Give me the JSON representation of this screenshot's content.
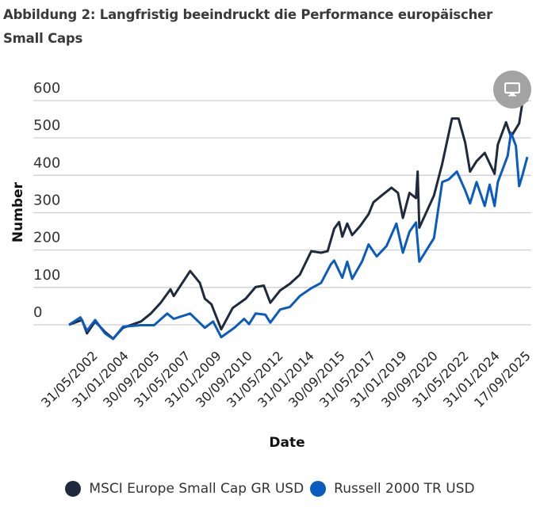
{
  "title": "Abbildung 2: Langfristig beeindruckt die Performance europäischer Small Caps",
  "menu_icon": "monitor-icon",
  "chart_data": {
    "type": "line",
    "title": "",
    "xlabel": "Date",
    "ylabel": "Number",
    "ylim": [
      -40,
      620
    ],
    "yticks": [
      0,
      100,
      200,
      300,
      400,
      500,
      600
    ],
    "xlim": [
      "2002-05",
      "2025-09"
    ],
    "xtick_labels": [
      "31/05/2002",
      "31/01/2004",
      "30/09/2005",
      "31/05/2007",
      "31/01/2009",
      "30/09/2010",
      "31/05/2012",
      "31/01/2014",
      "30/09/2015",
      "31/05/2017",
      "31/01/2019",
      "30/09/2020",
      "31/05/2022",
      "31/01/2024",
      "17/09/2025"
    ],
    "grid": true,
    "legend_position": "bottom",
    "series": [
      {
        "name": "MSCI Europe Small Cap GR USD",
        "color": "#1f2a3c",
        "x": [
          "2002-05",
          "2003-01",
          "2003-04",
          "2003-09",
          "2004-03",
          "2004-08",
          "2005-02",
          "2006-01",
          "2006-07",
          "2007-01",
          "2007-07",
          "2007-09",
          "2008-07",
          "2009-01",
          "2009-04",
          "2009-08",
          "2010-02",
          "2010-09",
          "2011-05",
          "2011-11",
          "2012-04",
          "2012-08",
          "2013-02",
          "2013-08",
          "2014-02",
          "2014-09",
          "2015-03",
          "2015-07",
          "2015-11",
          "2016-02",
          "2016-04",
          "2016-07",
          "2016-10",
          "2017-03",
          "2017-08",
          "2017-11",
          "2018-04",
          "2018-10",
          "2019-02",
          "2019-05",
          "2019-09",
          "2020-01",
          "2020-02",
          "2020-03",
          "2020-12",
          "2021-05",
          "2021-11",
          "2022-03",
          "2022-07",
          "2022-10",
          "2023-02",
          "2023-07",
          "2024-01",
          "2024-03",
          "2024-08",
          "2024-11",
          "2025-04",
          "2025-06",
          "2025-09"
        ],
        "y": [
          0,
          13,
          -23,
          9,
          -19,
          -37,
          -8,
          9,
          30,
          59,
          95,
          77,
          144,
          112,
          70,
          55,
          -12,
          45,
          70,
          101,
          105,
          59,
          92,
          110,
          134,
          197,
          193,
          197,
          257,
          275,
          236,
          271,
          240,
          265,
          296,
          328,
          346,
          367,
          353,
          286,
          353,
          339,
          410,
          260,
          346,
          431,
          552,
          552,
          488,
          410,
          438,
          460,
          404,
          482,
          542,
          503,
          539,
          594,
          601
        ]
      },
      {
        "name": "Russell 2000 TR USD",
        "color": "#0a5bbf",
        "x": [
          "2002-05",
          "2002-12",
          "2003-04",
          "2003-09",
          "2004-03",
          "2004-08",
          "2005-02",
          "2006-01",
          "2006-09",
          "2007-05",
          "2007-09",
          "2008-07",
          "2009-04",
          "2009-09",
          "2010-02",
          "2010-10",
          "2011-04",
          "2011-07",
          "2011-11",
          "2012-05",
          "2012-08",
          "2013-02",
          "2013-08",
          "2014-02",
          "2014-09",
          "2015-03",
          "2015-09",
          "2015-11",
          "2016-04",
          "2016-07",
          "2016-10",
          "2017-04",
          "2017-08",
          "2018-01",
          "2018-07",
          "2019-01",
          "2019-05",
          "2019-09",
          "2020-01",
          "2020-03",
          "2020-12",
          "2021-05",
          "2021-09",
          "2022-02",
          "2022-07",
          "2022-10",
          "2023-02",
          "2023-07",
          "2023-10",
          "2024-01",
          "2024-03",
          "2024-09",
          "2024-11",
          "2025-02",
          "2025-04",
          "2025-06",
          "2025-09"
        ],
        "y": [
          0,
          20,
          -16,
          13,
          -23,
          -38,
          -5,
          -1,
          -1,
          30,
          16,
          30,
          -8,
          9,
          -33,
          -8,
          16,
          2,
          30,
          27,
          6,
          41,
          48,
          77,
          98,
          112,
          162,
          172,
          126,
          169,
          123,
          169,
          215,
          183,
          211,
          271,
          193,
          249,
          274,
          169,
          232,
          382,
          389,
          410,
          360,
          325,
          382,
          318,
          375,
          318,
          382,
          452,
          514,
          479,
          371,
          400,
          449
        ]
      }
    ]
  },
  "legend": [
    {
      "label": "MSCI Europe Small Cap GR USD",
      "color": "#1f2a3c"
    },
    {
      "label": "Russell 2000 TR USD",
      "color": "#0a5bbf"
    }
  ]
}
